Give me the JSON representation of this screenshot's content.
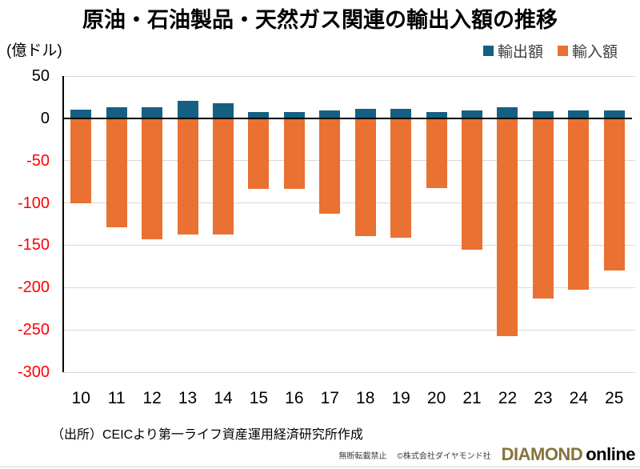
{
  "title": "原油・石油製品・天然ガス関連の輸出入額の推移",
  "y_unit_label": "(億ドル)",
  "legend": {
    "export_label": "輸出額",
    "import_label": "輸入額",
    "export_color": "#156082",
    "import_color": "#E97132"
  },
  "chart_data": {
    "type": "bar",
    "title": "原油・石油製品・天然ガス関連の輸出入額の推移",
    "ylabel": "(億ドル)",
    "categories": [
      "10",
      "11",
      "12",
      "13",
      "14",
      "15",
      "16",
      "17",
      "18",
      "19",
      "20",
      "21",
      "22",
      "23",
      "24",
      "25"
    ],
    "series": [
      {
        "name": "輸出額",
        "color": "#156082",
        "values": [
          10,
          13,
          13,
          21,
          18,
          7,
          7,
          9,
          11,
          11,
          7,
          9,
          13,
          8,
          9,
          9
        ]
      },
      {
        "name": "輸入額",
        "color": "#E97132",
        "values": [
          -100,
          -129,
          -143,
          -137,
          -137,
          -83,
          -83,
          -113,
          -139,
          -141,
          -82,
          -155,
          -257,
          -213,
          -203,
          -180
        ]
      }
    ],
    "ylim": [
      -300,
      50
    ],
    "yticks": [
      50,
      0,
      -50,
      -100,
      -150,
      -200,
      -250,
      -300
    ],
    "grid": "horizontal",
    "legend_position": "top-right",
    "positive_tick_color": "#000000",
    "negative_tick_color": "#FF0000"
  },
  "footer": {
    "source": "（出所）CEICより第一ライフ資産運用経済研究所作成"
  },
  "branding": {
    "rights": "無断転載禁止",
    "copyright": "©株式会社ダイヤモンド社",
    "logo_diamond": "DIAMOND",
    "logo_online": "online",
    "logo_color": "#84733A"
  }
}
